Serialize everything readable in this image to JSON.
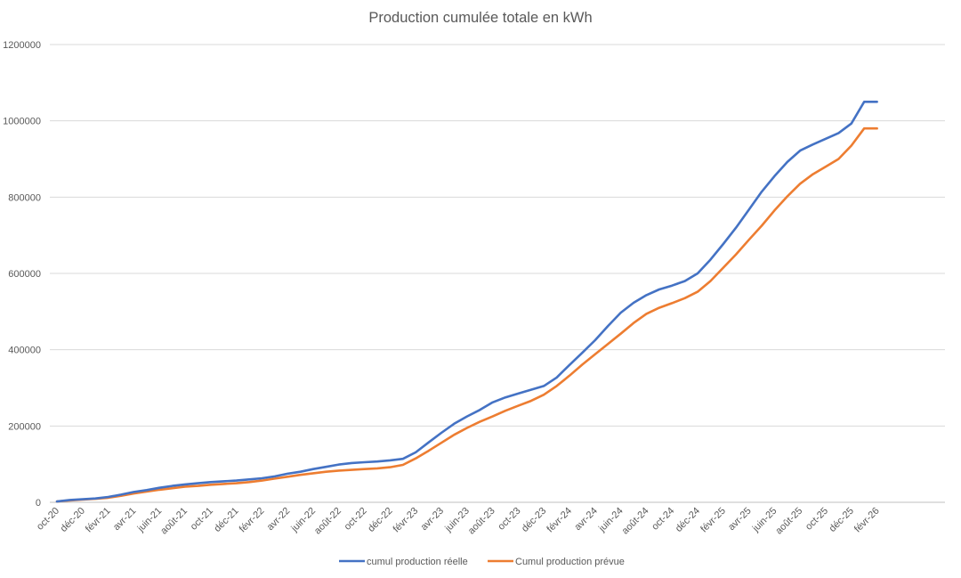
{
  "chart_data": {
    "type": "line",
    "title": "Production cumulée totale en kWh",
    "xlabel": "",
    "ylabel": "",
    "ylim": [
      0,
      1200000
    ],
    "yticks": [
      0,
      200000,
      400000,
      600000,
      800000,
      1000000,
      1200000
    ],
    "ytick_labels": [
      "0",
      "200000",
      "400000",
      "600000",
      "800000",
      "1000000",
      "1200000"
    ],
    "grid": "horizontal",
    "legend_position": "bottom",
    "x": [
      "oct-20",
      "nov-20",
      "déc-20",
      "janv-21",
      "févr-21",
      "mars-21",
      "avr-21",
      "mai-21",
      "juin-21",
      "juil-21",
      "août-21",
      "sept-21",
      "oct-21",
      "nov-21",
      "déc-21",
      "janv-22",
      "févr-22",
      "mars-22",
      "avr-22",
      "mai-22",
      "juin-22",
      "juil-22",
      "août-22",
      "sept-22",
      "oct-22",
      "nov-22",
      "déc-22",
      "janv-23",
      "févr-23",
      "mars-23",
      "avr-23",
      "mai-23",
      "juin-23",
      "juil-23",
      "août-23",
      "sept-23",
      "oct-23",
      "nov-23",
      "déc-23",
      "janv-24",
      "févr-24",
      "mars-24",
      "avr-24",
      "mai-24",
      "juin-24",
      "juil-24",
      "août-24",
      "sept-24",
      "oct-24",
      "nov-24",
      "déc-24",
      "janv-25",
      "févr-25",
      "mars-25",
      "avr-25",
      "mai-25",
      "juin-25",
      "juil-25",
      "août-25",
      "sept-25",
      "oct-25",
      "nov-25",
      "déc-25",
      "janv-26",
      "févr-26",
      "mars-26"
    ],
    "x_tick_labels": [
      "oct-20",
      "déc-20",
      "févr-21",
      "avr-21",
      "juin-21",
      "août-21",
      "oct-21",
      "déc-21",
      "févr-22",
      "avr-22",
      "juin-22",
      "août-22",
      "oct-22",
      "déc-22",
      "févr-23",
      "avr-23",
      "juin-23",
      "août-23",
      "oct-23",
      "déc-23",
      "févr-24",
      "avr-24",
      "juin-24",
      "août-24",
      "oct-24",
      "déc-24",
      "févr-25",
      "avr-25",
      "juin-25",
      "août-25",
      "oct-25",
      "déc-25",
      "févr-26"
    ],
    "series": [
      {
        "name": "cumul production réelle",
        "color": "#4472C4",
        "values": [
          2000,
          6000,
          8000,
          10000,
          14000,
          20000,
          27000,
          32000,
          38000,
          43000,
          47000,
          50000,
          53000,
          55000,
          57000,
          60000,
          63000,
          68000,
          75000,
          80000,
          87000,
          93000,
          99000,
          103000,
          105000,
          107000,
          110000,
          114000,
          131000,
          157000,
          182000,
          206000,
          225000,
          242000,
          262000,
          275000,
          285000,
          295000,
          305000,
          327000,
          360000,
          392000,
          425000,
          462000,
          497000,
          523000,
          543000,
          558000,
          568000,
          580000,
          600000,
          636000,
          677000,
          720000,
          767000,
          814000,
          855000,
          892000,
          922000,
          938000,
          953000,
          968000,
          993000,
          1050000,
          1050000,
          1050000
        ]
      },
      {
        "name": "Cumul production prévue",
        "color": "#ED7D31",
        "values": [
          2000,
          5000,
          7000,
          9000,
          12000,
          17000,
          23000,
          28000,
          33000,
          37000,
          41000,
          43000,
          46000,
          48000,
          50000,
          53000,
          57000,
          62000,
          67000,
          72000,
          76000,
          80000,
          83000,
          85000,
          87000,
          89000,
          92000,
          98000,
          115000,
          135000,
          156000,
          177000,
          195000,
          211000,
          225000,
          240000,
          253000,
          266000,
          282000,
          305000,
          332000,
          361000,
          388000,
          415000,
          442000,
          470000,
          494000,
          510000,
          522000,
          535000,
          552000,
          580000,
          615000,
          650000,
          688000,
          725000,
          765000,
          802000,
          835000,
          860000,
          880000,
          900000,
          935000,
          980000,
          980000,
          980000
        ]
      }
    ]
  }
}
